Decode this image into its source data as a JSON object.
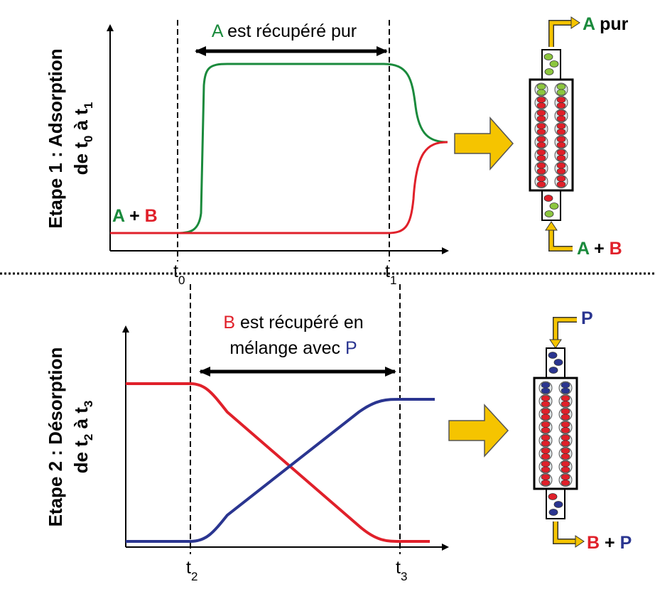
{
  "step1": {
    "title": "Etape 1 : Adsorption",
    "subtitle": [
      "de t",
      "0",
      " à t",
      "1"
    ],
    "annotation": [
      "A",
      " est récupéré pur"
    ],
    "feed_label": [
      "A",
      " + ",
      "B"
    ],
    "ticks": [
      [
        "t",
        "0"
      ],
      [
        "t",
        "1"
      ]
    ],
    "column_top": [
      "A",
      " pur"
    ],
    "column_bottom": [
      "A",
      " + ",
      "B"
    ]
  },
  "step2": {
    "title": "Etape 2 : Désorption",
    "subtitle": [
      "de t",
      "2",
      " à t",
      "3"
    ],
    "annotation_line1": [
      "B",
      " est récupéré en"
    ],
    "annotation_line2": [
      "mélange avec ",
      "P"
    ],
    "ticks": [
      [
        "t",
        "2"
      ],
      [
        "t",
        "3"
      ]
    ],
    "column_top": [
      "P"
    ],
    "column_bottom": [
      "B",
      " + ",
      "P"
    ]
  }
}
